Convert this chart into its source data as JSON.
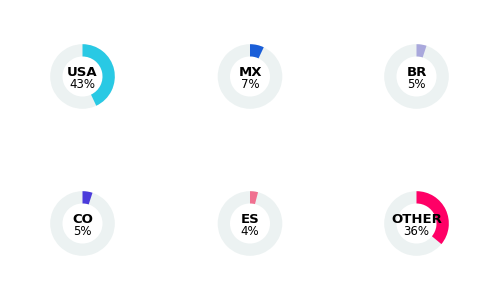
{
  "charts": [
    {
      "label": "USA",
      "value": 43,
      "color": "#29C9E4",
      "bg_color": "#ECF2F2"
    },
    {
      "label": "MX",
      "value": 7,
      "color": "#1A5ED8",
      "bg_color": "#ECF2F2"
    },
    {
      "label": "BR",
      "value": 5,
      "color": "#A9A8DC",
      "bg_color": "#ECF2F2"
    },
    {
      "label": "CO",
      "value": 5,
      "color": "#4B3BDB",
      "bg_color": "#ECF2F2"
    },
    {
      "label": "ES",
      "value": 4,
      "color": "#F07090",
      "bg_color": "#ECF2F2"
    },
    {
      "label": "OTHER",
      "value": 36,
      "color": "#FF0066",
      "bg_color": "#ECF2F2"
    }
  ],
  "background": "#FFFFFF",
  "label_fontsize": 9.5,
  "pct_fontsize": 8.5,
  "ring_outer": 1.0,
  "ring_inner": 0.62,
  "start_angle": 90,
  "grid_cols": 3,
  "grid_rows": 2
}
